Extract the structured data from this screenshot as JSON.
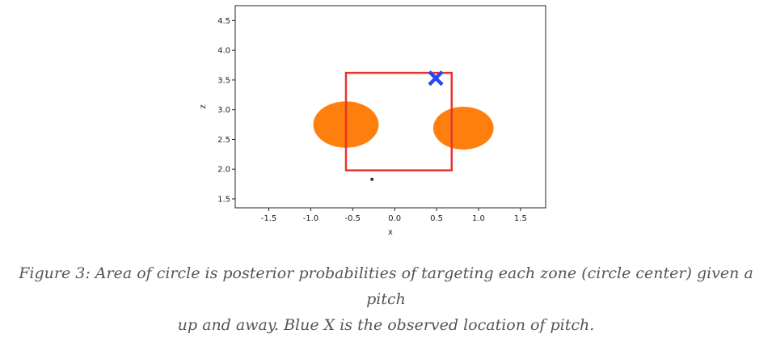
{
  "chart_data": {
    "type": "scatter",
    "title": "",
    "xlabel": "x",
    "ylabel": "z",
    "xlim": [
      -1.9,
      1.8
    ],
    "ylim": [
      1.35,
      4.75
    ],
    "x_ticks": [
      "-1.5",
      "-1.0",
      "-0.5",
      "0.0",
      "0.5",
      "1.0",
      "1.5"
    ],
    "y_ticks": [
      "1.5",
      "2.0",
      "2.5",
      "3.0",
      "3.5",
      "4.0",
      "4.5"
    ],
    "grid": false,
    "zone_rectangle": {
      "x0": -0.58,
      "x1": 0.68,
      "z0": 1.98,
      "z1": 3.62,
      "color": "#e8332a"
    },
    "circles": [
      {
        "x": -0.58,
        "z": 2.75,
        "radius": 0.39,
        "color": "#ff7f0e"
      },
      {
        "x": 0.82,
        "z": 2.69,
        "radius": 0.36,
        "color": "#ff7f0e"
      }
    ],
    "observed_pitch": {
      "x": 0.49,
      "z": 3.53,
      "marker": "X",
      "color": "#2a48f2"
    },
    "small_point": {
      "x": -0.27,
      "z": 1.83,
      "color": "#333333"
    }
  },
  "caption": {
    "line1": "Figure 3: Area of circle is posterior probabilities of targeting each zone (circle center) given a pitch",
    "line2": "up and away. Blue X is the observed location of pitch."
  }
}
